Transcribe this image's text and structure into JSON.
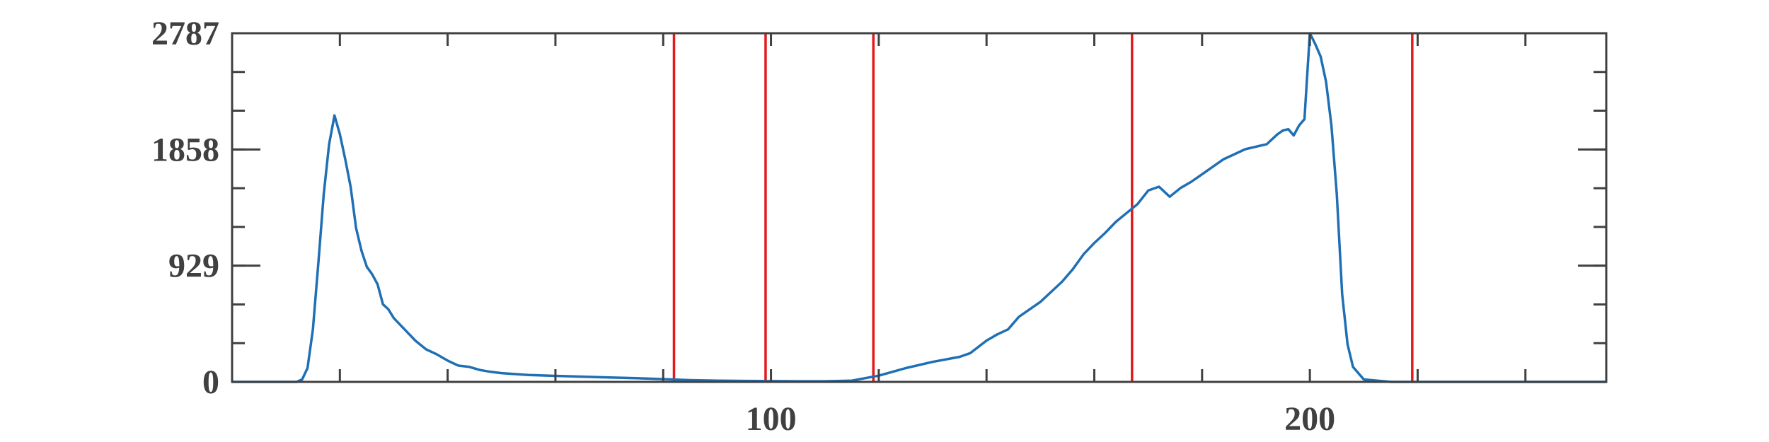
{
  "chart_data": {
    "type": "line",
    "title": "",
    "xlabel": "",
    "ylabel": "",
    "xlim": [
      0,
      255
    ],
    "ylim": [
      0,
      2787
    ],
    "x_ticks": [
      100,
      200
    ],
    "x_tick_labels": [
      "100",
      "200"
    ],
    "y_ticks": [
      0,
      929,
      1858,
      2787
    ],
    "y_tick_labels": [
      "0",
      "929",
      "1858",
      "2787"
    ],
    "grid": false,
    "legend": "none",
    "line_color": "#1f6fb4",
    "marker_color": "#e31a1c",
    "vertical_markers": [
      82,
      99,
      119,
      167,
      219
    ],
    "series": [
      {
        "x": [
          0,
          5,
          10,
          12,
          13,
          14,
          15,
          16,
          17,
          18,
          19,
          20,
          21,
          22,
          23,
          24,
          25,
          26,
          27,
          28,
          29,
          30,
          32,
          34,
          36,
          38,
          40,
          42,
          44,
          46,
          48,
          50,
          55,
          60,
          65,
          70,
          75,
          80,
          85,
          90,
          95,
          100,
          105,
          110,
          115,
          120,
          125,
          130,
          135,
          137,
          140,
          142,
          144,
          146,
          148,
          150,
          152,
          154,
          156,
          158,
          160,
          162,
          164,
          166,
          168,
          170,
          172,
          174,
          176,
          178,
          180,
          182,
          184,
          186,
          188,
          190,
          192,
          194,
          195,
          196,
          197,
          198,
          199,
          200,
          201,
          202,
          203,
          204,
          205,
          206,
          207,
          208,
          210,
          215,
          220,
          230,
          240,
          255
        ],
        "y": [
          0,
          0,
          0,
          0,
          20,
          110,
          420,
          950,
          1500,
          1900,
          2130,
          1980,
          1780,
          1560,
          1230,
          1050,
          920,
          860,
          780,
          620,
          580,
          510,
          420,
          330,
          260,
          220,
          170,
          130,
          120,
          95,
          80,
          70,
          55,
          48,
          42,
          35,
          30,
          22,
          14,
          10,
          8,
          6,
          5,
          5,
          10,
          50,
          110,
          160,
          200,
          230,
          330,
          380,
          420,
          520,
          580,
          640,
          720,
          800,
          900,
          1020,
          1110,
          1190,
          1280,
          1350,
          1420,
          1530,
          1560,
          1480,
          1550,
          1600,
          1660,
          1720,
          1780,
          1820,
          1860,
          1880,
          1900,
          1980,
          2010,
          2020,
          1970,
          2050,
          2100,
          2787,
          2700,
          2600,
          2400,
          2050,
          1500,
          700,
          300,
          120,
          20,
          0,
          0,
          0,
          0,
          0
        ]
      }
    ]
  }
}
